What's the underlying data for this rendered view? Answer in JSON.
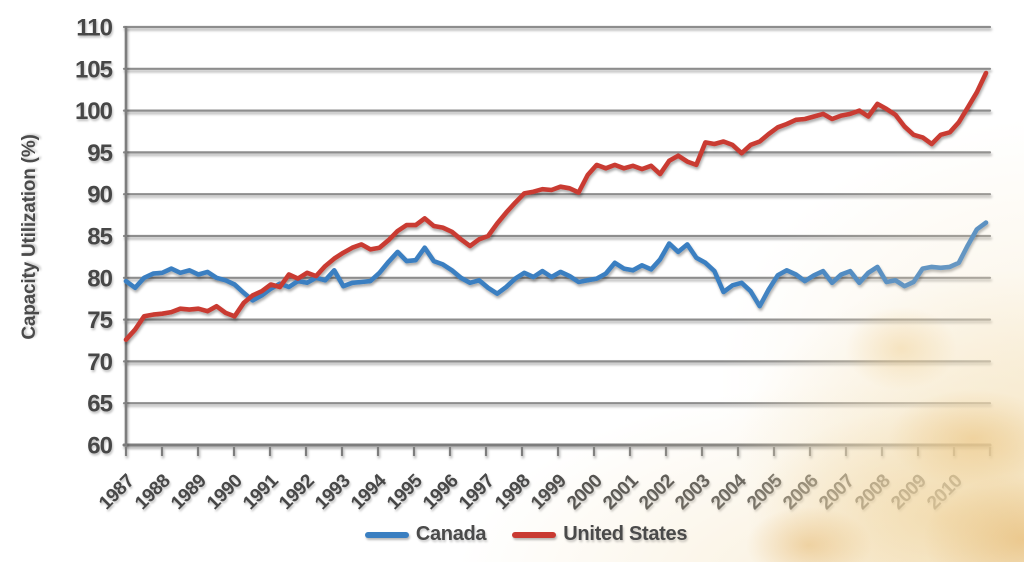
{
  "background": {
    "texture_name": "faded-golden-corn-photo-texture"
  },
  "chart_data": {
    "type": "line",
    "ylabel": "Capacity Utilization (%)",
    "xlabel": "",
    "ylim": [
      60,
      110
    ],
    "ytick_step": 5,
    "y_tick_labels": [
      "60",
      "65",
      "70",
      "75",
      "80",
      "85",
      "90",
      "95",
      "100",
      "105",
      "110"
    ],
    "x_tick_labels": [
      "1987",
      "1988",
      "1989",
      "1990",
      "1991",
      "1992",
      "1993",
      "1994",
      "1995",
      "1996",
      "1997",
      "1998",
      "1999",
      "2000",
      "2001",
      "2002",
      "2003",
      "2004",
      "2005",
      "2006",
      "2007",
      "2008",
      "2009",
      "2010"
    ],
    "points_per_year": 4,
    "grid": "horizontal",
    "legend_position": "bottom",
    "axis_color": "#7d7d7d",
    "grid_color": "#8d8d8d",
    "label_color": "#474747",
    "series": [
      {
        "name": "Canada",
        "color": "#3a7fc1",
        "values": [
          79.6,
          78.8,
          80.0,
          80.5,
          80.6,
          81.1,
          80.6,
          80.9,
          80.4,
          80.7,
          80.0,
          79.7,
          79.2,
          78.2,
          77.3,
          77.9,
          78.7,
          79.3,
          78.9,
          79.6,
          79.4,
          80.0,
          79.7,
          80.9,
          79.0,
          79.4,
          79.5,
          79.6,
          80.6,
          81.9,
          83.1,
          82.0,
          82.1,
          83.6,
          82.0,
          81.6,
          80.9,
          80.0,
          79.4,
          79.7,
          78.8,
          78.1,
          78.9,
          79.9,
          80.6,
          80.1,
          80.8,
          80.1,
          80.7,
          80.2,
          79.5,
          79.7,
          79.9,
          80.5,
          81.8,
          81.1,
          80.9,
          81.5,
          81.0,
          82.2,
          84.1,
          83.1,
          84.0,
          82.4,
          81.8,
          80.8,
          78.3,
          79.1,
          79.4,
          78.4,
          76.6,
          78.6,
          80.3,
          80.9,
          80.4,
          79.6,
          80.3,
          80.8,
          79.4,
          80.4,
          80.8,
          79.4,
          80.6,
          81.3,
          79.5,
          79.7,
          79.0,
          79.5,
          81.1,
          81.3,
          81.2,
          81.3,
          81.8,
          83.9,
          85.8,
          86.6
        ]
      },
      {
        "name": "United States",
        "color": "#c93a32",
        "values": [
          72.6,
          73.8,
          75.4,
          75.6,
          75.7,
          75.9,
          76.3,
          76.2,
          76.3,
          76.0,
          76.6,
          75.8,
          75.4,
          77.0,
          77.9,
          78.4,
          79.2,
          78.9,
          80.4,
          79.9,
          80.6,
          80.2,
          81.4,
          82.3,
          83.0,
          83.6,
          84.0,
          83.4,
          83.6,
          84.5,
          85.6,
          86.3,
          86.3,
          87.1,
          86.2,
          86.0,
          85.5,
          84.6,
          83.8,
          84.6,
          85.0,
          86.5,
          87.8,
          89.0,
          90.1,
          90.3,
          90.6,
          90.5,
          90.9,
          90.7,
          90.2,
          92.3,
          93.5,
          93.1,
          93.5,
          93.1,
          93.4,
          93.0,
          93.4,
          92.4,
          94.0,
          94.6,
          93.9,
          93.5,
          96.2,
          96.0,
          96.3,
          95.9,
          94.9,
          95.9,
          96.3,
          97.2,
          98.0,
          98.4,
          98.9,
          99.0,
          99.3,
          99.6,
          99.0,
          99.4,
          99.6,
          100.0,
          99.3,
          100.8,
          100.2,
          99.5,
          98.1,
          97.1,
          96.8,
          96.0,
          97.1,
          97.4,
          98.6,
          100.4,
          102.2,
          104.5
        ]
      }
    ]
  },
  "legend": {
    "canada_label": "Canada",
    "us_label": "United States"
  }
}
